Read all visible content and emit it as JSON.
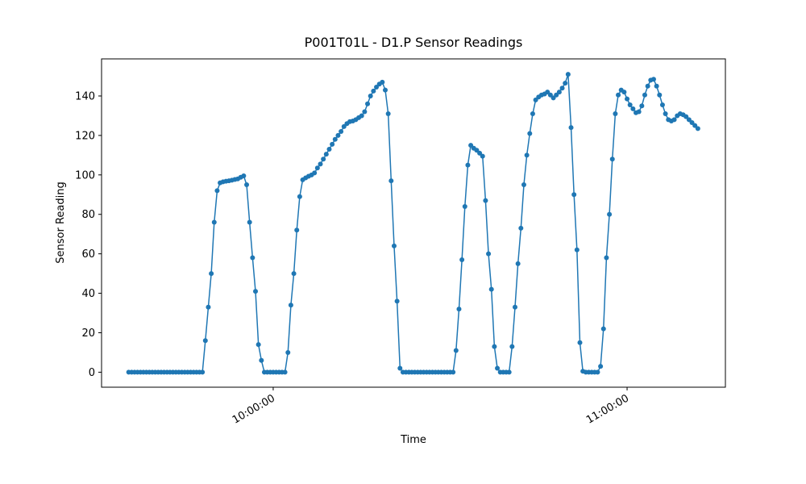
{
  "chart_data": {
    "type": "line",
    "title": "P001T01L - D1.P Sensor Readings",
    "xlabel": "Time",
    "ylabel": "Sensor Reading",
    "x": [
      "09:35:30",
      "09:36:00",
      "09:36:30",
      "09:37:00",
      "09:37:30",
      "09:38:00",
      "09:38:30",
      "09:39:00",
      "09:39:30",
      "09:40:00",
      "09:40:30",
      "09:41:00",
      "09:41:30",
      "09:42:00",
      "09:42:30",
      "09:43:00",
      "09:43:30",
      "09:44:00",
      "09:44:30",
      "09:45:00",
      "09:45:30",
      "09:46:00",
      "09:46:30",
      "09:47:00",
      "09:47:30",
      "09:48:00",
      "09:48:30",
      "09:49:00",
      "09:49:30",
      "09:50:00",
      "09:50:30",
      "09:51:00",
      "09:51:30",
      "09:52:00",
      "09:52:30",
      "09:53:00",
      "09:53:30",
      "09:54:00",
      "09:54:30",
      "09:55:00",
      "09:55:30",
      "09:56:00",
      "09:56:30",
      "09:57:00",
      "09:57:30",
      "09:58:00",
      "09:58:30",
      "09:59:00",
      "09:59:30",
      "10:00:00",
      "10:00:30",
      "10:01:00",
      "10:01:30",
      "10:02:00",
      "10:02:30",
      "10:03:00",
      "10:03:30",
      "10:04:00",
      "10:04:30",
      "10:05:00",
      "10:05:30",
      "10:06:00",
      "10:06:30",
      "10:07:00",
      "10:07:30",
      "10:08:00",
      "10:08:30",
      "10:09:00",
      "10:09:30",
      "10:10:00",
      "10:10:30",
      "10:11:00",
      "10:11:30",
      "10:12:00",
      "10:12:30",
      "10:13:00",
      "10:13:30",
      "10:14:00",
      "10:14:30",
      "10:15:00",
      "10:15:30",
      "10:16:00",
      "10:16:30",
      "10:17:00",
      "10:17:30",
      "10:18:00",
      "10:18:30",
      "10:19:00",
      "10:19:30",
      "10:20:00",
      "10:20:30",
      "10:21:00",
      "10:21:30",
      "10:22:00",
      "10:22:30",
      "10:23:00",
      "10:23:30",
      "10:24:00",
      "10:24:30",
      "10:25:00",
      "10:25:30",
      "10:26:00",
      "10:26:30",
      "10:27:00",
      "10:27:30",
      "10:28:00",
      "10:28:30",
      "10:29:00",
      "10:29:30",
      "10:30:00",
      "10:30:30",
      "10:31:00",
      "10:31:30",
      "10:32:00",
      "10:32:30",
      "10:33:00",
      "10:33:30",
      "10:34:00",
      "10:34:30",
      "10:35:00",
      "10:35:30",
      "10:36:00",
      "10:36:30",
      "10:37:00",
      "10:37:30",
      "10:38:00",
      "10:38:30",
      "10:39:00",
      "10:39:30",
      "10:40:00",
      "10:40:30",
      "10:41:00",
      "10:41:30",
      "10:42:00",
      "10:42:30",
      "10:43:00",
      "10:43:30",
      "10:44:00",
      "10:44:30",
      "10:45:00",
      "10:45:30",
      "10:46:00",
      "10:46:30",
      "10:47:00",
      "10:47:30",
      "10:48:00",
      "10:48:30",
      "10:49:00",
      "10:49:30",
      "10:50:00",
      "10:50:30",
      "10:51:00",
      "10:51:30",
      "10:52:00",
      "10:52:30",
      "10:53:00",
      "10:53:30",
      "10:54:00",
      "10:54:30",
      "10:55:00",
      "10:55:30",
      "10:56:00",
      "10:56:30",
      "10:57:00",
      "10:57:30",
      "10:58:00",
      "10:58:30",
      "10:59:00",
      "10:59:30",
      "11:00:00",
      "11:00:30",
      "11:01:00",
      "11:01:30",
      "11:02:00",
      "11:02:30",
      "11:03:00",
      "11:03:30",
      "11:04:00",
      "11:04:30",
      "11:05:00",
      "11:05:30",
      "11:06:00",
      "11:06:30",
      "11:07:00",
      "11:07:30",
      "11:08:00",
      "11:08:30",
      "11:09:00",
      "11:09:30",
      "11:10:00",
      "11:10:30",
      "11:11:00",
      "11:11:30",
      "11:12:00"
    ],
    "series": [
      {
        "color": "#1f77b4",
        "values": [
          0,
          0,
          0,
          0,
          0,
          0,
          0,
          0,
          0,
          0,
          0,
          0,
          0,
          0,
          0,
          0,
          0,
          0,
          0,
          0,
          0,
          0,
          0,
          0,
          0,
          0,
          16,
          33,
          50,
          76,
          92,
          96,
          96.5,
          96.8,
          97,
          97.3,
          97.7,
          98,
          98.8,
          99.5,
          95,
          76,
          58,
          41,
          14,
          6,
          0,
          0,
          0,
          0,
          0,
          0,
          0,
          0,
          10,
          34,
          50,
          72,
          89,
          97.5,
          98.5,
          99.3,
          100,
          101,
          103.5,
          105.5,
          108,
          110.5,
          113,
          115.5,
          118,
          120,
          122,
          124.5,
          126,
          127,
          127.3,
          128,
          129,
          130,
          132,
          136,
          140,
          142.5,
          144.5,
          146,
          147,
          143,
          131,
          97,
          64,
          36,
          2,
          0,
          0,
          0,
          0,
          0,
          0,
          0,
          0,
          0,
          0,
          0,
          0,
          0,
          0,
          0,
          0,
          0,
          0,
          11,
          32,
          57,
          84,
          105,
          115,
          113.5,
          112.5,
          111,
          109.5,
          87,
          60,
          42,
          13,
          2,
          0,
          0,
          0,
          0,
          13,
          33,
          55,
          73,
          95,
          110,
          121,
          131,
          138,
          139.5,
          140.5,
          141,
          142,
          140.5,
          139,
          140.5,
          142,
          144,
          146.5,
          151,
          124,
          90,
          62,
          15,
          0.5,
          0,
          0,
          0,
          0,
          0,
          3,
          22,
          58,
          80,
          108,
          131,
          140.5,
          143,
          142,
          138.5,
          135.5,
          133.5,
          131.5,
          132,
          135,
          140.5,
          145,
          148,
          148.5,
          145,
          140.5,
          135.5,
          131,
          128,
          127.3,
          128,
          130,
          131,
          130.5,
          129.5,
          128,
          126.5,
          125,
          123.5
        ]
      }
    ],
    "xlim": [
      "09:30:54",
      "11:16:40"
    ],
    "xticks": [
      "10:00:00",
      "11:00:00"
    ],
    "ylim": [
      -7.6,
      158.8
    ],
    "yticks": [
      0,
      20,
      40,
      60,
      80,
      100,
      120,
      140
    ]
  }
}
